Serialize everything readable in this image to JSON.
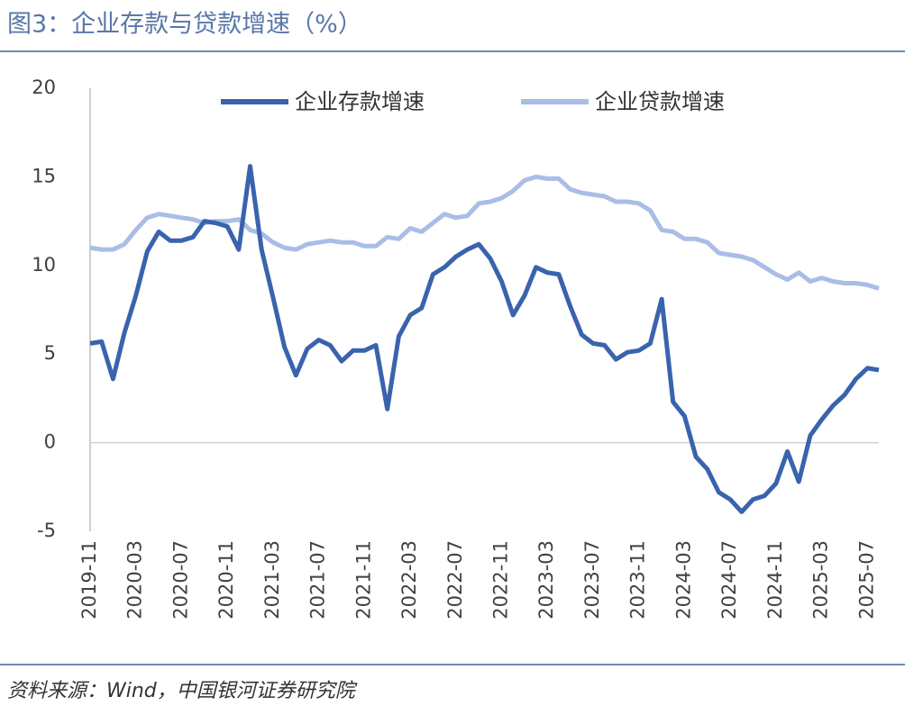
{
  "chart_data": {
    "type": "line",
    "title": "图3：企业存款与贷款增速（%）",
    "source": "资料来源：Wind，中国银河证券研究院",
    "categories": [
      "2019-11",
      null,
      null,
      null,
      "2020-03",
      null,
      null,
      null,
      "2020-07",
      null,
      null,
      null,
      "2020-11",
      null,
      null,
      null,
      "2021-03",
      null,
      null,
      null,
      "2021-07",
      null,
      null,
      null,
      "2021-11",
      null,
      null,
      null,
      "2022-03",
      null,
      null,
      null,
      "2022-07",
      null,
      null,
      null,
      "2022-11",
      null,
      null,
      null,
      "2023-03",
      null,
      null,
      null,
      "2023-07",
      null,
      null,
      null,
      "2023-11",
      null,
      null,
      null,
      "2024-03",
      null,
      null,
      null,
      "2024-07",
      null,
      null,
      null,
      "2024-11",
      null,
      null,
      null,
      "2025-03",
      null,
      null,
      null,
      "2025-07",
      null
    ],
    "series": [
      {
        "name": "企业存款增速",
        "color": "#3a63ad",
        "values": [
          5.6,
          5.7,
          3.6,
          6.2,
          8.3,
          10.8,
          11.9,
          11.4,
          11.4,
          11.6,
          12.5,
          12.4,
          12.2,
          10.9,
          15.6,
          10.9,
          8.2,
          5.4,
          3.8,
          5.3,
          5.8,
          5.5,
          4.6,
          5.2,
          5.2,
          5.5,
          1.9,
          6.0,
          7.2,
          7.6,
          9.5,
          9.9,
          10.5,
          10.9,
          11.2,
          10.4,
          9.1,
          7.2,
          8.3,
          9.9,
          9.6,
          9.5,
          7.7,
          6.1,
          5.6,
          5.5,
          4.7,
          5.1,
          5.2,
          5.6,
          8.1,
          2.3,
          1.5,
          -0.8,
          -1.5,
          -2.8,
          -3.2,
          -3.9,
          -3.2,
          -3.0,
          -2.3,
          -0.5,
          -2.2,
          0.4,
          1.3,
          2.1,
          2.7,
          3.6,
          4.2,
          4.1
        ]
      },
      {
        "name": "企业贷款增速",
        "color": "#a9bde6",
        "values": [
          11.0,
          10.9,
          10.9,
          11.2,
          12.0,
          12.7,
          12.9,
          12.8,
          12.7,
          12.6,
          12.4,
          12.5,
          12.5,
          12.6,
          12.0,
          11.8,
          11.3,
          11.0,
          10.9,
          11.2,
          11.3,
          11.4,
          11.3,
          11.3,
          11.1,
          11.1,
          11.6,
          11.5,
          12.1,
          11.9,
          12.4,
          12.9,
          12.7,
          12.8,
          13.5,
          13.6,
          13.8,
          14.2,
          14.8,
          15.0,
          14.9,
          14.9,
          14.3,
          14.1,
          14.0,
          13.9,
          13.6,
          13.6,
          13.5,
          13.1,
          12.0,
          11.9,
          11.5,
          11.5,
          11.3,
          10.7,
          10.6,
          10.5,
          10.3,
          9.9,
          9.5,
          9.2,
          9.6,
          9.1,
          9.3,
          9.1,
          9.0,
          9.0,
          8.9,
          8.7
        ]
      }
    ],
    "ylim": [
      -5,
      20
    ],
    "yticks": [
      -5,
      0,
      5,
      10,
      15,
      20
    ],
    "legend": "top"
  }
}
